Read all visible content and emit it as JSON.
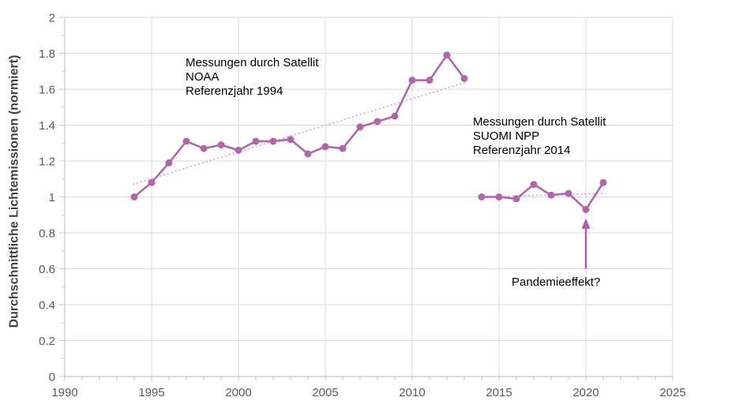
{
  "chart_data": {
    "type": "line",
    "title": "",
    "xlabel": "",
    "ylabel": "Durchschnittliche Lichtemissionen (normiert)",
    "xlim": [
      1990,
      2025
    ],
    "ylim": [
      0,
      2
    ],
    "grid": {
      "horizontal": true,
      "vertical": true
    },
    "legend": "none",
    "x_tick_values": [
      1990,
      1995,
      2000,
      2005,
      2010,
      2015,
      2020,
      2025
    ],
    "x_tick_labels": [
      "1990",
      "1995",
      "2000",
      "2005",
      "2010",
      "2015",
      "2020",
      "2025"
    ],
    "x_minor_tick_step": 1,
    "y_tick_values": [
      0,
      0.2,
      0.4,
      0.6,
      0.8,
      1,
      1.2,
      1.4,
      1.6,
      1.8,
      2
    ],
    "y_tick_labels": [
      "0",
      "0.2",
      "0.4",
      "0.6",
      "0.8",
      "1",
      "1.2",
      "1.4",
      "1.6",
      "1.8",
      "2"
    ],
    "y_minor_tick_step": 0.1,
    "series": [
      {
        "name": "NOAA",
        "x": [
          1994,
          1995,
          1996,
          1997,
          1998,
          1999,
          2000,
          2001,
          2002,
          2003,
          2004,
          2005,
          2006,
          2007,
          2008,
          2009,
          2010,
          2011,
          2012,
          2013
        ],
        "values": [
          1.0,
          1.08,
          1.19,
          1.31,
          1.27,
          1.29,
          1.26,
          1.31,
          1.31,
          1.32,
          1.24,
          1.28,
          1.27,
          1.39,
          1.42,
          1.45,
          1.65,
          1.65,
          1.79,
          1.66
        ],
        "trendline": {
          "x": [
            1994,
            2013
          ],
          "values": [
            1.07,
            1.64
          ]
        }
      },
      {
        "name": "SUOMI NPP",
        "x": [
          2014,
          2015,
          2016,
          2017,
          2018,
          2019,
          2020,
          2021
        ],
        "values": [
          1.0,
          1.0,
          0.99,
          1.07,
          1.01,
          1.02,
          0.93,
          1.08
        ],
        "trendline": {
          "x": [
            2014,
            2021
          ],
          "values": [
            1.0,
            1.02
          ]
        }
      }
    ],
    "annotations": [
      {
        "id": "noaa",
        "text": "Messungen durch Satellit\nNOAA\nReferenzjahr 1994"
      },
      {
        "id": "suomi",
        "text": "Messungen durch Satellit\nSUOMI NPP\nReferenzjahr 2014"
      },
      {
        "id": "pandemic",
        "text": "Pandemieeffekt?",
        "arrow": {
          "x": 2020,
          "from_value": 0.6,
          "to_value": 0.88
        }
      }
    ],
    "colors": {
      "series": "#b266aa",
      "trendline": "#dba6d2",
      "arrow": "#b35aa6",
      "grid": "#d9d9d9",
      "axis": "#c6c6c6",
      "tick_label": "#595959",
      "axis_title": "#404040",
      "annotation_text": "#000000",
      "background": "#ffffff"
    }
  }
}
